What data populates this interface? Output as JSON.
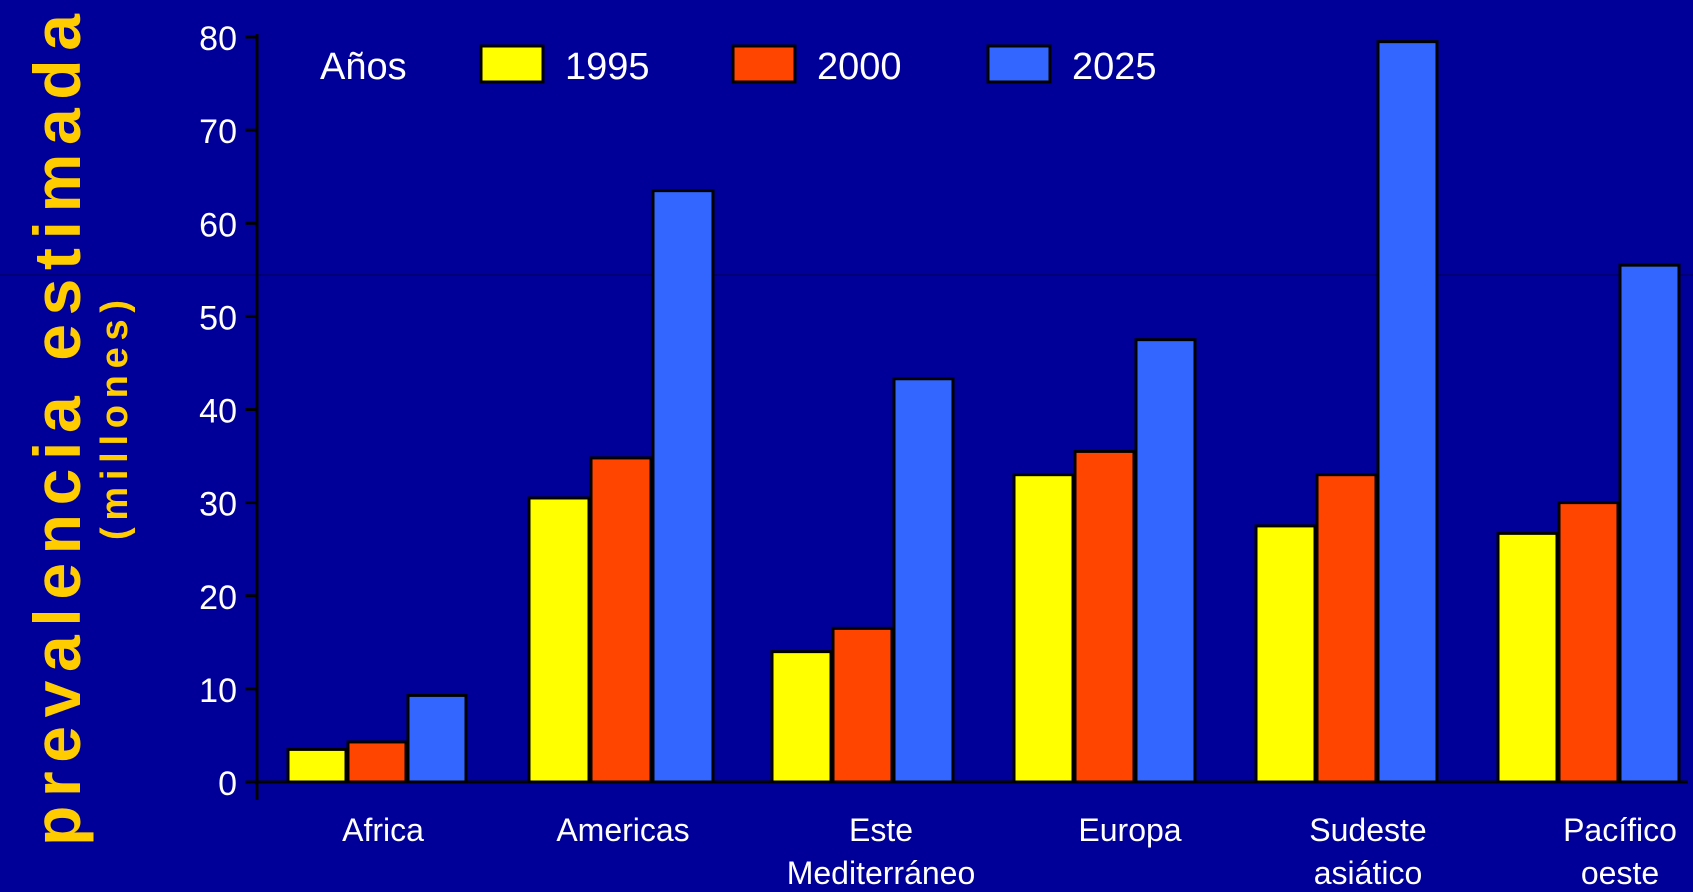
{
  "chart_data": {
    "type": "bar",
    "ylabel": "prevalencia estimada",
    "ylabel_sub": "(millones)",
    "legend_title": "Años",
    "legend_position": "top",
    "categories": [
      "Africa",
      "Americas",
      "Este Mediterráneo",
      "Europa",
      "Sudeste asiático",
      "Pacífico oeste"
    ],
    "category_lines": [
      [
        "Africa"
      ],
      [
        "Americas"
      ],
      [
        "Este",
        "Mediterráneo"
      ],
      [
        "Europa"
      ],
      [
        "Sudeste",
        "asiático"
      ],
      [
        "Pacífico",
        "oeste"
      ]
    ],
    "series": [
      {
        "name": "1995",
        "color": "#FFFF00",
        "values": [
          3.5,
          30.5,
          14,
          33,
          27.5,
          26.7
        ]
      },
      {
        "name": "2000",
        "color": "#FF4500",
        "values": [
          4.3,
          34.8,
          16.5,
          35.5,
          33,
          30
        ]
      },
      {
        "name": "2025",
        "color": "#3366FF",
        "values": [
          9.3,
          63.5,
          43.3,
          47.5,
          79.5,
          55.5
        ]
      }
    ],
    "ylim": [
      0,
      80
    ],
    "yticks": [
      0,
      10,
      20,
      30,
      40,
      50,
      60,
      70,
      80
    ],
    "grid": false,
    "colors": {
      "background": "#000099",
      "text": "#FFFFFF",
      "ylabel": "#FFCC00",
      "axis": "#000000"
    }
  }
}
